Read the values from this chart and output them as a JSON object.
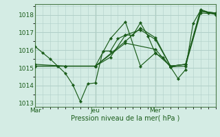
{
  "xlabel": "Pression niveau de la mer( hPa )",
  "bg_color": "#d4ece4",
  "grid_color": "#b0cfc8",
  "line_color": "#1a5c1a",
  "spine_color": "#4a7a4a",
  "xlim": [
    0,
    48
  ],
  "ylim": [
    1012.8,
    1018.6
  ],
  "yticks": [
    1013,
    1014,
    1015,
    1016,
    1017,
    1018
  ],
  "xtick_positions": [
    0,
    16,
    32
  ],
  "xtick_labels": [
    "Mar",
    "Jeu",
    "Mer"
  ],
  "series": [
    [
      0,
      1016.2,
      2,
      1015.85,
      4,
      1015.5,
      6,
      1015.1,
      8,
      1014.7,
      10,
      1014.05,
      12,
      1013.1,
      14,
      1014.1,
      16,
      1014.15,
      18,
      1015.95,
      20,
      1015.95,
      22,
      1016.65,
      24,
      1016.85,
      26,
      1016.85,
      28,
      1017.55,
      30,
      1016.8,
      32,
      1015.8,
      34,
      1015.6,
      36,
      1015.05,
      38,
      1014.4,
      40,
      1014.9,
      42,
      1017.5,
      44,
      1018.25,
      46,
      1018.1,
      48,
      1018.05
    ],
    [
      0,
      1015.2,
      8,
      1015.1,
      16,
      1015.1,
      20,
      1015.6,
      24,
      1016.85,
      28,
      1017.15,
      32,
      1016.6,
      36,
      1015.1,
      40,
      1015.2,
      44,
      1018.2,
      48,
      1018.1
    ],
    [
      0,
      1015.1,
      8,
      1015.1,
      16,
      1015.1,
      24,
      1016.5,
      28,
      1017.25,
      32,
      1016.7,
      36,
      1015.1,
      40,
      1015.2,
      44,
      1018.3,
      48,
      1018.0
    ],
    [
      0,
      1015.1,
      8,
      1015.1,
      16,
      1015.1,
      20,
      1016.65,
      24,
      1017.6,
      28,
      1015.1,
      32,
      1015.85,
      36,
      1015.1,
      40,
      1015.2,
      44,
      1018.2,
      48,
      1018.1
    ],
    [
      0,
      1015.1,
      16,
      1015.1,
      24,
      1016.4,
      32,
      1016.05,
      36,
      1015.05,
      40,
      1015.1,
      44,
      1018.1,
      48,
      1018.05
    ]
  ]
}
